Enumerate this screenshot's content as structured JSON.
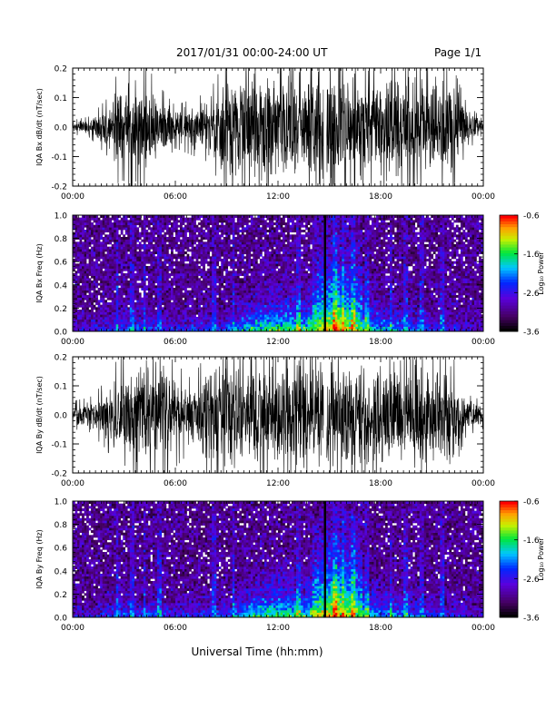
{
  "header": {
    "title": "2017/01/31   00:00-24:00 UT",
    "page": "Page 1/1"
  },
  "xlabel": "Universal Time (hh:mm)",
  "colorbar": {
    "label": "Log₁₀ Power",
    "ticks": [
      "-0.6",
      "-1.6",
      "-2.6",
      "-3.6"
    ],
    "range": [
      -3.6,
      -0.6
    ],
    "colormap": "rainbow"
  },
  "chart_data": [
    {
      "type": "line",
      "ylabel": "IQA Bx dB/dt (nT/sec)",
      "x_ticks": [
        "00:00",
        "06:00",
        "12:00",
        "18:00",
        "00:00"
      ],
      "xlim_hours": [
        0,
        24
      ],
      "ylim": [
        -0.2,
        0.2
      ],
      "y_ticks": [
        "0.2",
        "0.1",
        "0.0",
        "-0.1",
        "-0.2"
      ],
      "y_tick_values": [
        0.2,
        0.1,
        0.0,
        -0.1,
        -0.2
      ],
      "envelope": {
        "hours": [
          0,
          1,
          2,
          3,
          4,
          5,
          6,
          7,
          8,
          9,
          10,
          10.5,
          11,
          12,
          13,
          14,
          14.5,
          15,
          16,
          17,
          18,
          19,
          20,
          21,
          22,
          23,
          24
        ],
        "amplitude": [
          0.02,
          0.03,
          0.08,
          0.2,
          0.2,
          0.12,
          0.06,
          0.08,
          0.1,
          0.2,
          0.2,
          0.2,
          0.2,
          0.2,
          0.2,
          0.2,
          0.2,
          0.2,
          0.2,
          0.2,
          0.2,
          0.2,
          0.2,
          0.2,
          0.2,
          0.07,
          0.02
        ]
      }
    },
    {
      "type": "heatmap",
      "ylabel": "IQA Bx Freq (Hz)",
      "x_ticks": [
        "00:00",
        "06:00",
        "12:00",
        "18:00",
        "00:00"
      ],
      "xlim_hours": [
        0,
        24
      ],
      "ylim": [
        0.0,
        1.0
      ],
      "y_ticks": [
        "1.0",
        "0.8",
        "0.6",
        "0.4",
        "0.2",
        "0.0"
      ],
      "y_tick_values": [
        1.0,
        0.8,
        0.6,
        0.4,
        0.2,
        0.0
      ],
      "zlim": [
        -3.6,
        -0.6
      ]
    },
    {
      "type": "line",
      "ylabel": "IQA By dB/dt (nT/sec)",
      "x_ticks": [
        "00:00",
        "06:00",
        "12:00",
        "18:00",
        "00:00"
      ],
      "xlim_hours": [
        0,
        24
      ],
      "ylim": [
        -0.2,
        0.2
      ],
      "y_ticks": [
        "0.2",
        "0.1",
        "0.0",
        "-0.1",
        "-0.2"
      ],
      "y_tick_values": [
        0.2,
        0.1,
        0.0,
        -0.1,
        -0.2
      ],
      "envelope": {
        "hours": [
          0,
          1,
          2,
          3,
          4,
          5,
          6,
          7,
          8,
          9,
          10,
          10.5,
          11,
          12,
          13,
          14,
          14.5,
          15,
          16,
          17,
          18,
          19,
          20,
          21,
          22,
          23,
          24
        ],
        "amplitude": [
          0.04,
          0.05,
          0.1,
          0.2,
          0.2,
          0.2,
          0.15,
          0.1,
          0.2,
          0.2,
          0.2,
          0.2,
          0.2,
          0.2,
          0.2,
          0.2,
          0.2,
          0.2,
          0.2,
          0.2,
          0.2,
          0.2,
          0.2,
          0.2,
          0.2,
          0.06,
          0.04
        ]
      }
    },
    {
      "type": "heatmap",
      "ylabel": "IQA By Freq (Hz)",
      "x_ticks": [
        "00:00",
        "06:00",
        "12:00",
        "18:00",
        "00:00"
      ],
      "xlim_hours": [
        0,
        24
      ],
      "ylim": [
        0.0,
        1.0
      ],
      "y_ticks": [
        "1.0",
        "0.8",
        "0.6",
        "0.4",
        "0.2",
        "0.0"
      ],
      "y_tick_values": [
        1.0,
        0.8,
        0.6,
        0.4,
        0.2,
        0.0
      ],
      "zlim": [
        -3.6,
        -0.6
      ]
    }
  ]
}
